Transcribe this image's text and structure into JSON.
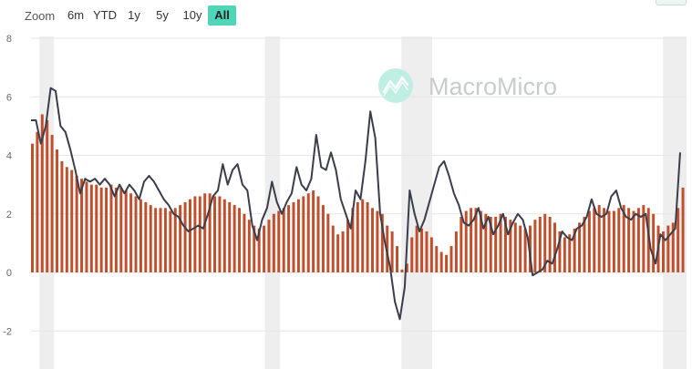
{
  "toolbar": {
    "zoom_label": "Zoom",
    "ranges": [
      {
        "label": "6m",
        "active": false
      },
      {
        "label": "YTD",
        "active": false
      },
      {
        "label": "1y",
        "active": false
      },
      {
        "label": "5y",
        "active": false
      },
      {
        "label": "10y",
        "active": false
      },
      {
        "label": "All",
        "active": true
      }
    ]
  },
  "watermark": {
    "text": "MacroMicro",
    "icon": "macromicro-logo-icon"
  },
  "colors": {
    "line": "#3a3d4a",
    "bars": "#c0502d",
    "recession": "#eeeeee",
    "accent": "#4fd6b8"
  },
  "chart_data": {
    "type": "bar",
    "title": "",
    "xlabel": "",
    "ylabel": "",
    "ylim": [
      -2,
      8
    ],
    "yticks": [
      "8",
      "6",
      "4",
      "2",
      "0",
      "-2"
    ],
    "grid": true,
    "recession_bands": [
      [
        0.013,
        0.035
      ],
      [
        0.357,
        0.38
      ],
      [
        0.565,
        0.612
      ],
      [
        0.964,
        1.0
      ]
    ],
    "series": [
      {
        "kind": "bar",
        "values": [
          4.4,
          4.8,
          5.4,
          5.2,
          4.7,
          4.2,
          3.8,
          3.6,
          3.5,
          3.3,
          3.2,
          3.1,
          3.0,
          3.0,
          2.9,
          2.9,
          3.0,
          2.9,
          2.9,
          2.8,
          2.7,
          2.6,
          2.5,
          2.4,
          2.3,
          2.2,
          2.2,
          2.2,
          2.1,
          2.2,
          2.3,
          2.4,
          2.5,
          2.6,
          2.6,
          2.7,
          2.7,
          2.6,
          2.6,
          2.5,
          2.4,
          2.3,
          2.2,
          2.0,
          1.8,
          1.6,
          1.5,
          1.6,
          1.8,
          2.0,
          2.1,
          2.2,
          2.3,
          2.4,
          2.5,
          2.6,
          2.7,
          2.8,
          2.6,
          2.3,
          2.0,
          1.6,
          1.3,
          1.4,
          1.8,
          2.2,
          2.4,
          2.5,
          2.4,
          2.2,
          2.1,
          2.0,
          1.6,
          1.4,
          0.9,
          0.1,
          0.3,
          1.2,
          1.6,
          1.5,
          1.4,
          1.2,
          0.9,
          0.7,
          0.6,
          0.9,
          1.4,
          1.9,
          2.1,
          2.2,
          2.2,
          2.1,
          2.0,
          1.9,
          1.9,
          2.0,
          1.9,
          1.8,
          1.7,
          1.6,
          1.5,
          1.6,
          1.8,
          1.9,
          2.0,
          1.9,
          1.7,
          1.4,
          1.2,
          1.3,
          1.5,
          1.7,
          1.9,
          2.1,
          2.2,
          2.3,
          2.2,
          2.1,
          2.1,
          2.2,
          2.3,
          2.2,
          2.1,
          2.2,
          2.3,
          2.2,
          2.0,
          1.6,
          1.4,
          1.6,
          1.7,
          2.2,
          2.9
        ]
      },
      {
        "kind": "line",
        "values": [
          5.2,
          5.2,
          4.4,
          5.0,
          6.3,
          6.2,
          5.0,
          4.8,
          4.2,
          3.5,
          2.7,
          3.2,
          3.1,
          3.2,
          3.0,
          3.2,
          3.0,
          2.6,
          3.0,
          2.7,
          3.0,
          2.8,
          2.5,
          3.1,
          3.3,
          3.1,
          2.8,
          2.5,
          2.3,
          2.0,
          1.9,
          1.6,
          1.4,
          1.5,
          1.6,
          1.5,
          2.0,
          2.6,
          2.8,
          3.7,
          3.0,
          3.5,
          3.7,
          3.0,
          2.8,
          1.6,
          1.1,
          1.8,
          2.2,
          3.1,
          2.4,
          2.0,
          2.4,
          2.7,
          3.6,
          3.0,
          2.8,
          3.2,
          4.7,
          3.6,
          3.5,
          4.1,
          3.5,
          2.5,
          2.0,
          1.5,
          2.8,
          2.5,
          3.8,
          5.5,
          4.6,
          2.0,
          1.0,
          0.2,
          -1.0,
          -1.6,
          -0.5,
          2.8,
          2.0,
          1.4,
          1.8,
          2.4,
          3.0,
          3.6,
          3.8,
          3.3,
          2.7,
          2.3,
          1.7,
          1.6,
          1.8,
          2.2,
          1.5,
          1.9,
          1.3,
          1.6,
          2.0,
          1.3,
          1.7,
          2.0,
          1.8,
          1.2,
          -0.1,
          0.0,
          0.1,
          0.4,
          0.3,
          0.8,
          1.4,
          1.2,
          1.1,
          1.5,
          1.6,
          1.9,
          2.5,
          2.0,
          1.9,
          2.0,
          2.6,
          2.8,
          2.2,
          1.9,
          1.8,
          2.0,
          1.9,
          2.0,
          0.8,
          0.3,
          1.3,
          1.1,
          1.3,
          1.5,
          4.1
        ]
      }
    ]
  }
}
